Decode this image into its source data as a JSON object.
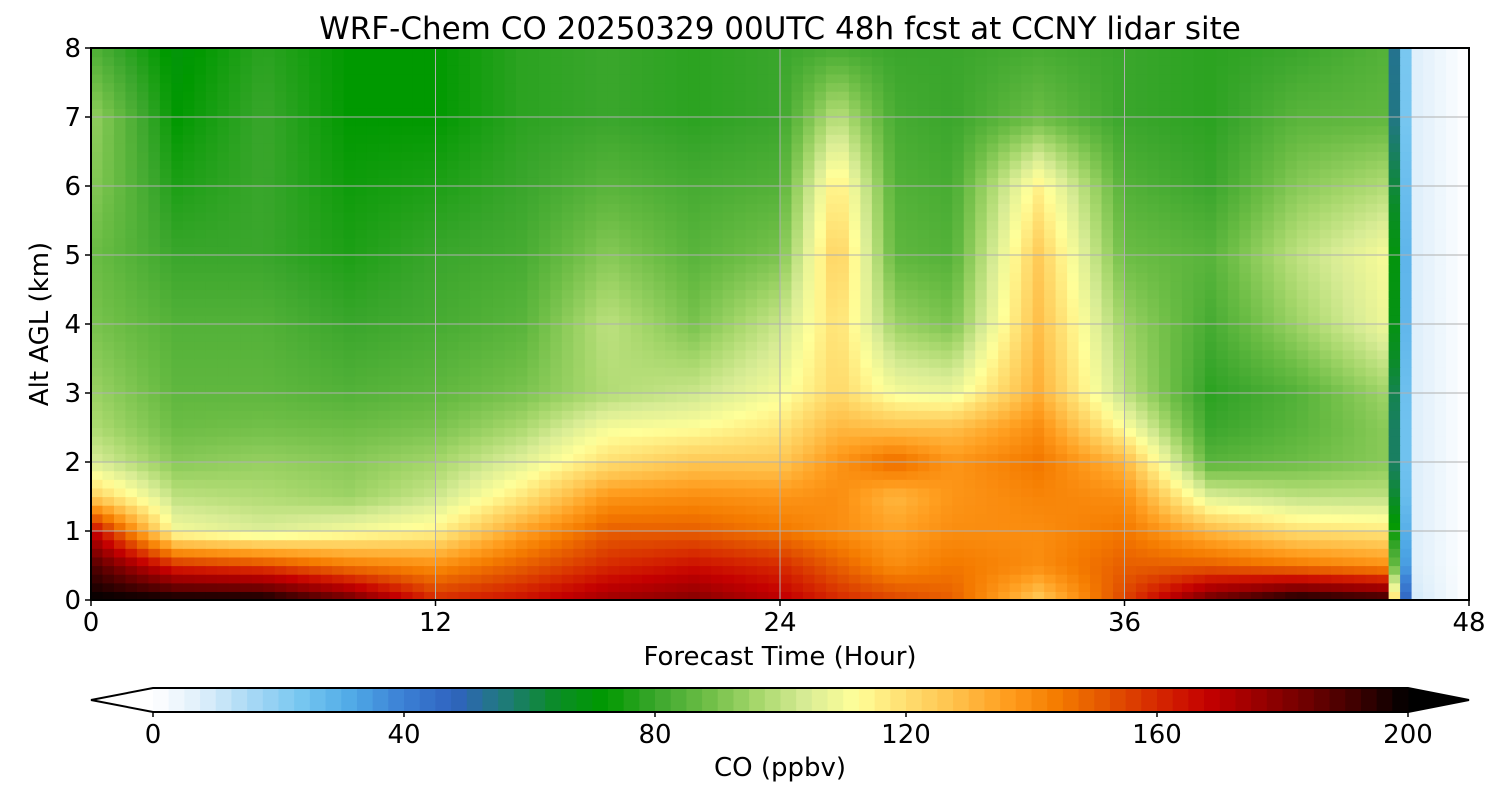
{
  "chart_data": {
    "type": "heatmap",
    "title": "WRF-Chem CO  20250329 00UTC 48h fcst at CCNY lidar site",
    "xlabel": "Forecast Time (Hour)",
    "ylabel": "Alt AGL (km)",
    "xlim": [
      0,
      48
    ],
    "ylim": [
      0,
      8
    ],
    "xticks": [
      0,
      12,
      24,
      36,
      48
    ],
    "yticks": [
      0,
      1,
      2,
      3,
      4,
      5,
      6,
      7,
      8
    ],
    "grid": true,
    "colorbar": {
      "label": "CO  (ppbv)",
      "range": [
        0,
        200
      ],
      "ticks": [
        0,
        40,
        80,
        120,
        160,
        200
      ],
      "extend": "both",
      "colors": [
        "#ffffff",
        "#dceefa",
        "#a6d8f5",
        "#74c5f0",
        "#4ea8e6",
        "#3b7fd4",
        "#2f63bf",
        "#1f7a7a",
        "#0b8c28",
        "#009900",
        "#3aa62c",
        "#6cbd45",
        "#a4d66a",
        "#d8ec95",
        "#ffff99",
        "#ffde70",
        "#ffc04a",
        "#ff9e1f",
        "#f57c00",
        "#e35400",
        "#d62800",
        "#c40000",
        "#9a0000",
        "#6e0000",
        "#3c0000",
        "#000000"
      ]
    },
    "field": {
      "description_units": "CO mixing ratio in ppbv on hour/altitude grid",
      "x": [
        0,
        3,
        6,
        9,
        12,
        15,
        18,
        21,
        24,
        26,
        28,
        30,
        33,
        36,
        39,
        42,
        45,
        46,
        48
      ],
      "y": [
        0,
        0.5,
        1,
        1.5,
        2,
        2.5,
        3,
        4,
        5,
        6,
        7,
        8
      ],
      "z": [
        [
          200,
          200,
          200,
          185,
          160,
          165,
          175,
          180,
          170,
          160,
          155,
          150,
          125,
          155,
          185,
          200,
          195,
          10,
          0
        ],
        [
          190,
          160,
          155,
          145,
          140,
          150,
          160,
          165,
          160,
          150,
          140,
          145,
          140,
          150,
          150,
          145,
          140,
          8,
          0
        ],
        [
          170,
          110,
          105,
          110,
          115,
          135,
          150,
          150,
          145,
          140,
          135,
          140,
          140,
          145,
          130,
          120,
          118,
          8,
          0
        ],
        [
          125,
          100,
          98,
          95,
          102,
          118,
          138,
          140,
          138,
          140,
          130,
          138,
          142,
          140,
          105,
          100,
          100,
          8,
          0
        ],
        [
          105,
          92,
          94,
          92,
          96,
          106,
          120,
          126,
          126,
          138,
          148,
          138,
          145,
          130,
          85,
          88,
          92,
          8,
          0
        ],
        [
          98,
          88,
          89,
          88,
          90,
          97,
          110,
          112,
          118,
          130,
          128,
          128,
          140,
          112,
          80,
          85,
          92,
          8,
          0
        ],
        [
          95,
          86,
          86,
          84,
          86,
          90,
          98,
          102,
          110,
          122,
          110,
          108,
          132,
          100,
          78,
          84,
          95,
          8,
          0
        ],
        [
          90,
          84,
          84,
          80,
          82,
          85,
          100,
          90,
          102,
          120,
          95,
          90,
          128,
          95,
          82,
          95,
          108,
          8,
          0
        ],
        [
          88,
          80,
          80,
          76,
          80,
          82,
          92,
          85,
          90,
          125,
          86,
          84,
          125,
          88,
          85,
          100,
          110,
          8,
          0
        ],
        [
          92,
          76,
          80,
          74,
          76,
          80,
          85,
          82,
          84,
          118,
          84,
          82,
          115,
          84,
          80,
          92,
          98,
          8,
          0
        ],
        [
          94,
          72,
          80,
          72,
          72,
          78,
          80,
          78,
          80,
          100,
          82,
          80,
          88,
          80,
          78,
          85,
          86,
          8,
          0
        ],
        [
          84,
          70,
          78,
          72,
          72,
          78,
          80,
          78,
          80,
          82,
          80,
          80,
          82,
          80,
          78,
          80,
          84,
          8,
          0
        ]
      ]
    }
  }
}
